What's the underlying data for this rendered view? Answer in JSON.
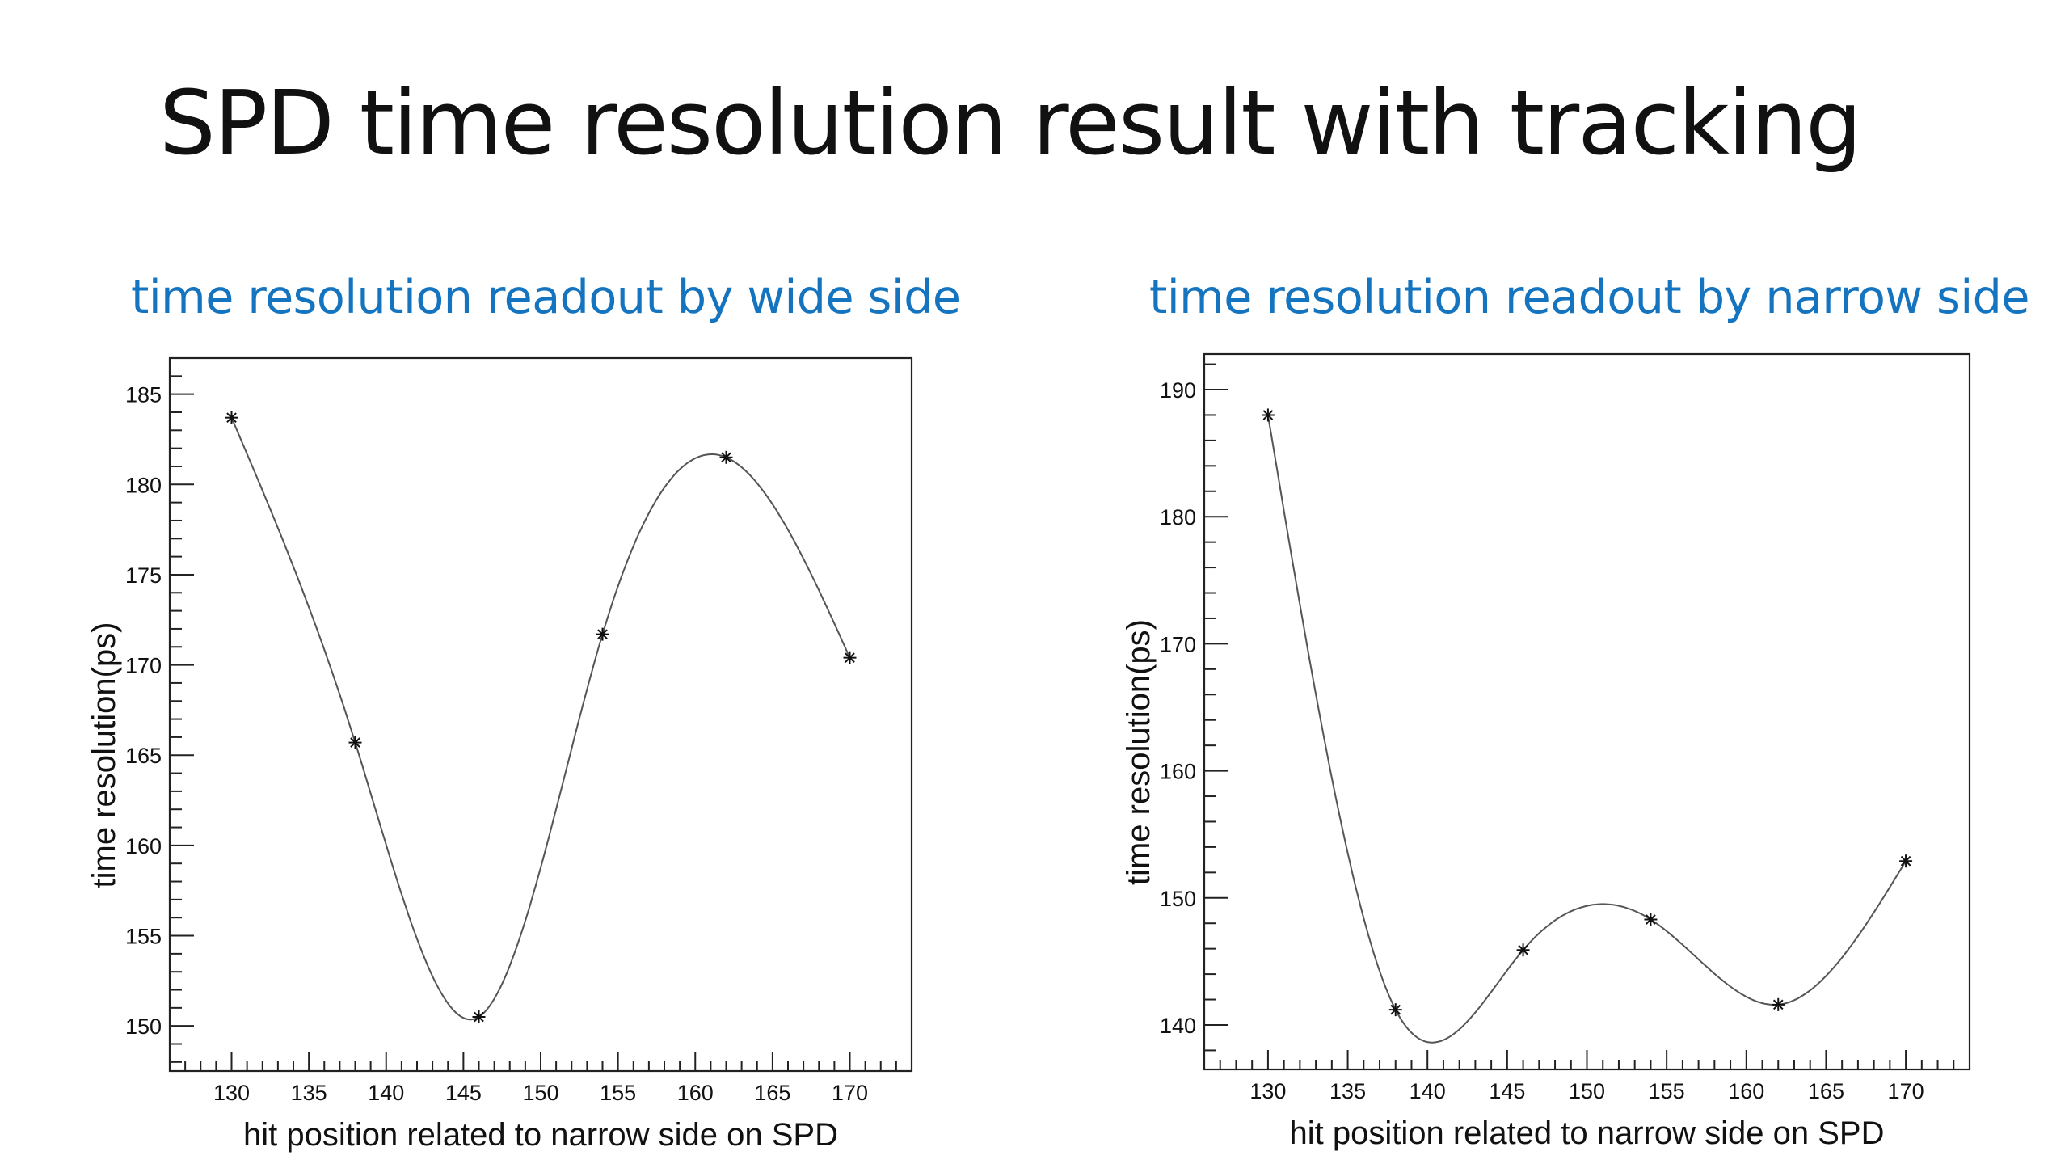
{
  "slide": {
    "title": "SPD time resolution result with tracking"
  },
  "chart_data": [
    {
      "type": "line",
      "title": "time resolution readout by wide side",
      "xlabel": "hit position related to narrow side on SPD",
      "ylabel": "time resolution(ps)",
      "xlim": [
        126,
        174
      ],
      "ylim": [
        147.5,
        187
      ],
      "x_ticks": [
        130,
        135,
        140,
        145,
        150,
        155,
        160,
        165,
        170
      ],
      "y_ticks": [
        150,
        155,
        160,
        165,
        170,
        175,
        180,
        185
      ],
      "marker": "asterisk",
      "line_color": "#555555",
      "grid": false,
      "series": [
        {
          "x": [
            130,
            138,
            146,
            154,
            162,
            170
          ],
          "y": [
            183.7,
            165.7,
            150.5,
            171.7,
            181.5,
            170.4
          ]
        }
      ]
    },
    {
      "type": "line",
      "title": "time resolution readout by narrow side",
      "xlabel": "hit position related to narrow side on SPD",
      "ylabel": "time resolution(ps)",
      "xlim": [
        126,
        174
      ],
      "ylim": [
        136.5,
        192.8
      ],
      "x_ticks": [
        130,
        135,
        140,
        145,
        150,
        155,
        160,
        165,
        170
      ],
      "y_ticks": [
        140,
        150,
        160,
        170,
        180,
        190
      ],
      "marker": "asterisk",
      "line_color": "#555555",
      "grid": false,
      "series": [
        {
          "x": [
            130,
            138,
            146,
            154,
            162,
            170
          ],
          "y": [
            188.0,
            141.2,
            145.9,
            148.3,
            141.6,
            152.9
          ]
        }
      ]
    }
  ]
}
